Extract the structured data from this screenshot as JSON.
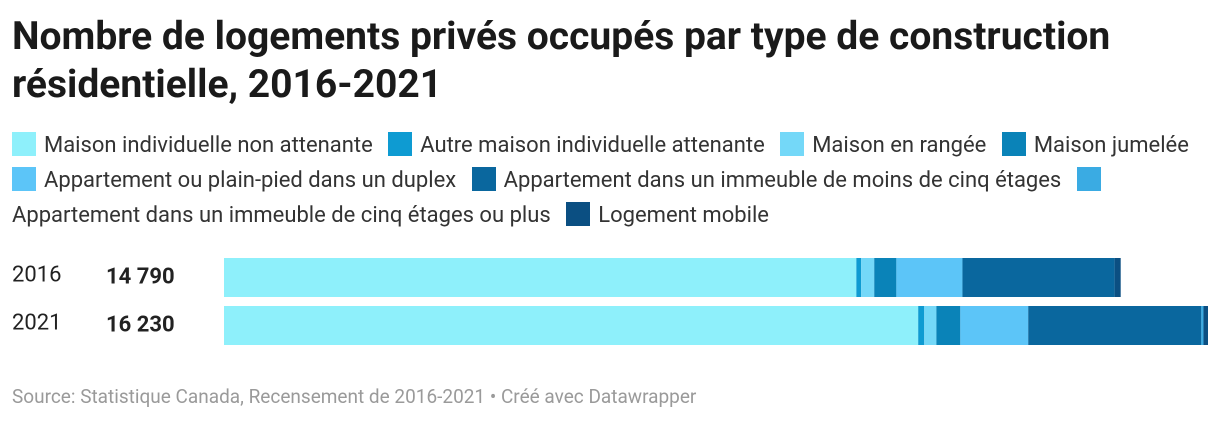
{
  "chart_data": {
    "type": "stacked-bar",
    "title": "Nombre de logements privés occupés par type de construction résidentielle, 2016-2021",
    "categories": [
      "2016",
      "2021"
    ],
    "totals": [
      14790,
      16230
    ],
    "total_labels": [
      "14 790",
      "16 230"
    ],
    "series": [
      {
        "name": "Maison individuelle non attenante",
        "color": "#8ef0fb",
        "values": [
          10430,
          11450
        ]
      },
      {
        "name": "Autre maison individuelle attenante",
        "color": "#0e9bd2",
        "values": [
          80,
          100
        ]
      },
      {
        "name": "Maison en rangée",
        "color": "#74d8f8",
        "values": [
          215,
          200
        ]
      },
      {
        "name": "Maison jumelée",
        "color": "#0a83b8",
        "values": [
          365,
          395
        ]
      },
      {
        "name": "Appartement ou plain-pied dans un duplex",
        "color": "#5cc5f8",
        "values": [
          1090,
          1120
        ]
      },
      {
        "name": "Appartement dans un immeuble de moins de cinq étages",
        "color": "#0a679e",
        "values": [
          2510,
          2855
        ]
      },
      {
        "name": "Appartement dans un immeuble de cinq étages ou plus",
        "color": "#3aabe3",
        "values": [
          0,
          35
        ]
      },
      {
        "name": "Logement mobile",
        "color": "#0b4f82",
        "values": [
          100,
          75
        ]
      }
    ],
    "xlim": [
      0,
      16230
    ],
    "source": "Source: Statistique Canada, Recensement de 2016-2021 • Créé avec Datawrapper"
  }
}
